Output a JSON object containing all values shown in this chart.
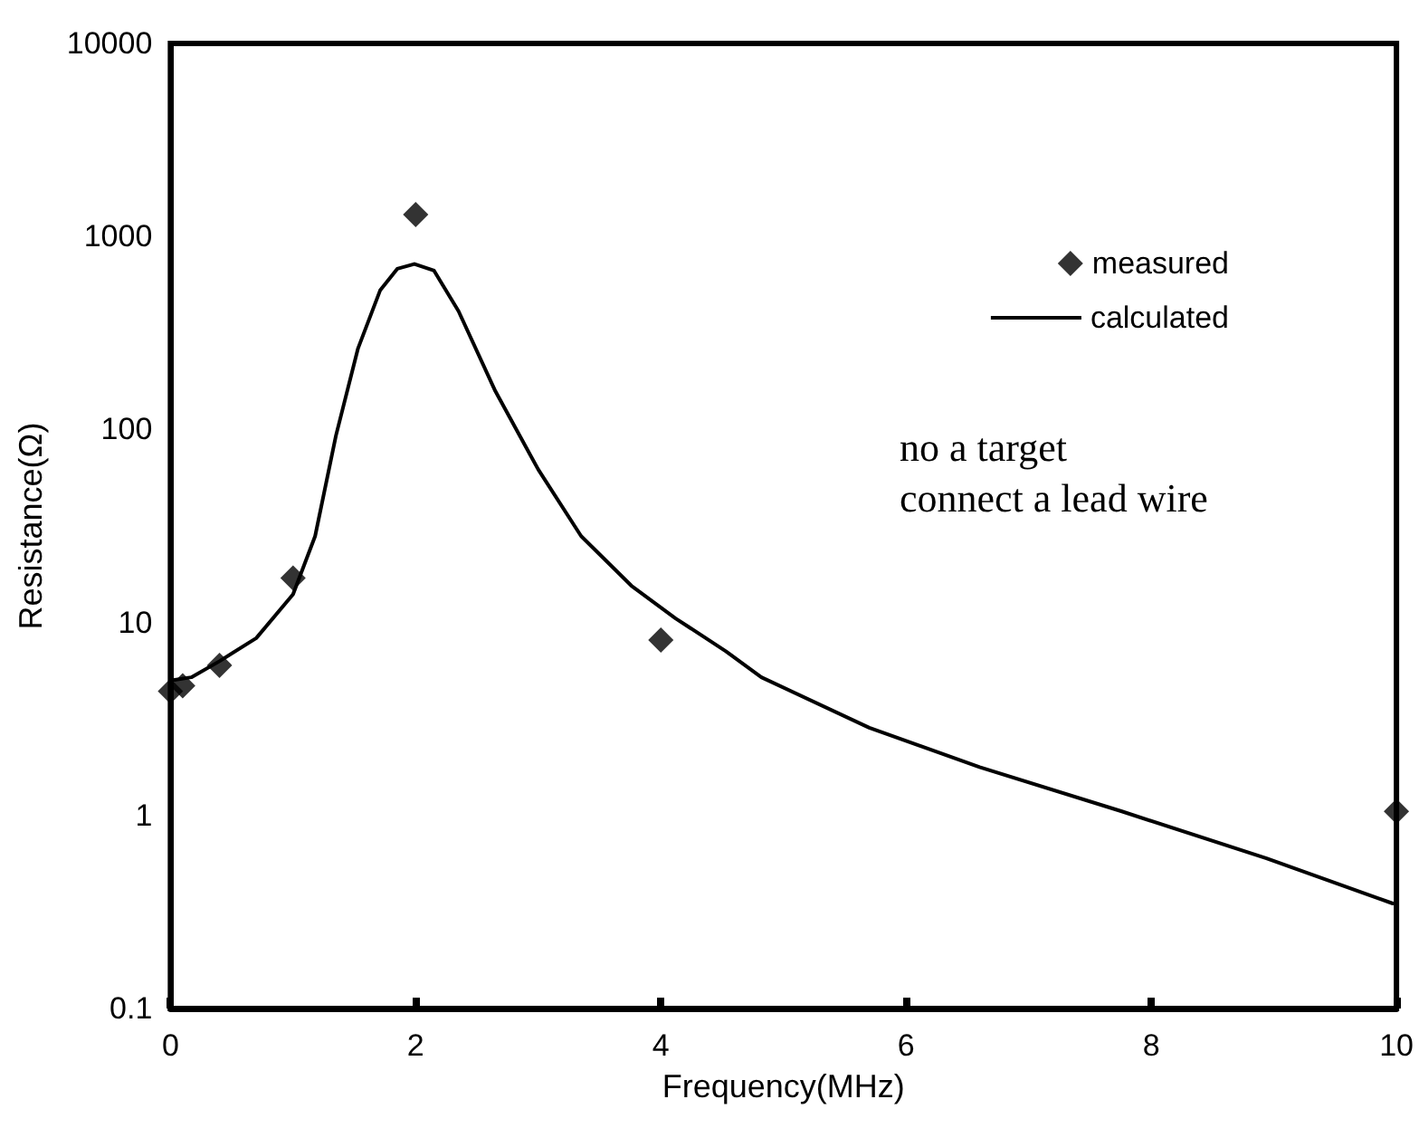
{
  "chart_data": {
    "type": "scatter",
    "xlabel": "Frequency(MHz)",
    "ylabel": "Resistance(Ω)",
    "log": "y",
    "xlim": [
      0,
      10
    ],
    "xticks": [
      0,
      2,
      4,
      6,
      8,
      10
    ],
    "ylim": [
      0.1,
      10000
    ],
    "yticks": [
      0.1,
      1,
      10,
      100,
      1000,
      10000
    ],
    "grid": false,
    "legend": "top right",
    "annotations": [
      "no a target",
      "connect a lead wire"
    ],
    "series": [
      {
        "name": "measured",
        "marker": "diamond",
        "color": "#000000",
        "x": [
          0,
          0.1,
          0.4,
          1,
          2,
          4,
          10
        ],
        "values": [
          4.4,
          4.7,
          6,
          17,
          1300,
          8.1,
          1.05
        ]
      },
      {
        "name": "calculated",
        "type": "line",
        "marker": "none",
        "line_style": "solid",
        "color": "#000000",
        "x": [
          0,
          0.17,
          0.4,
          0.7,
          1,
          1.18,
          1.35,
          1.53,
          1.71,
          1.85,
          1.99,
          2.15,
          2.35,
          2.65,
          3,
          3.35,
          3.76,
          4.12,
          4.53,
          4.82,
          5.7,
          6.6,
          7.76,
          8.94,
          9.97
        ],
        "values": [
          5,
          5.2,
          6.3,
          8.3,
          14,
          28,
          93,
          263,
          525,
          680,
          720,
          665,
          410,
          158,
          62,
          28,
          15.5,
          10.5,
          7.1,
          5.2,
          2.85,
          1.78,
          1.05,
          0.6,
          0.35
        ]
      }
    ]
  }
}
